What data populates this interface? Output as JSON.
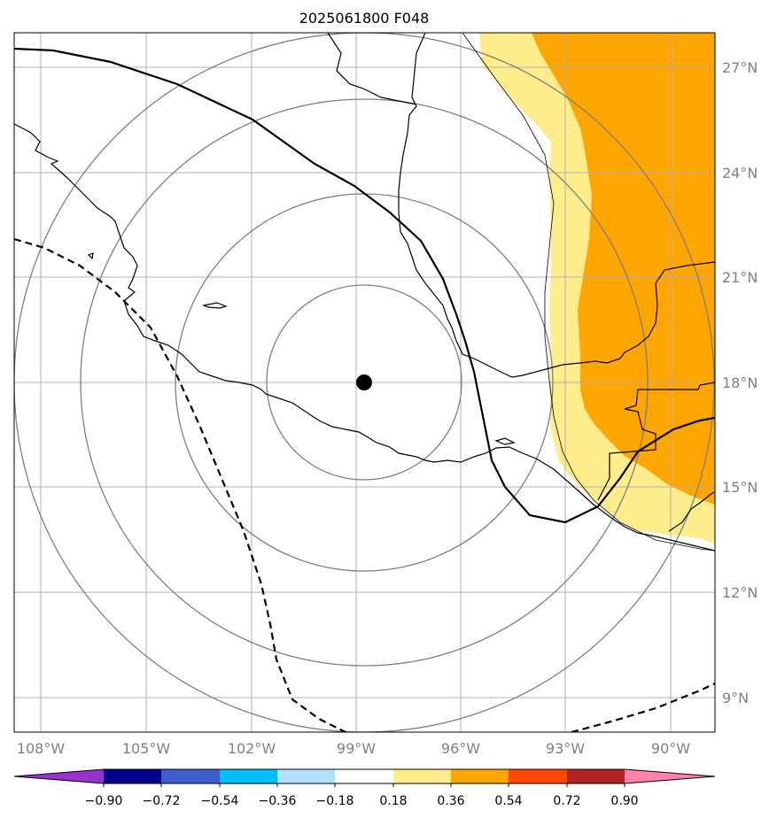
{
  "title": "2025061800 F048",
  "lon_labels": [
    "108°W",
    "105°W",
    "102°W",
    "99°W",
    "96°W",
    "93°W",
    "90°W"
  ],
  "lat_labels": [
    "27°N",
    "24°N",
    "21°N",
    "18°N",
    "15°N",
    "12°N",
    "9°N"
  ],
  "colorbar": {
    "ticks": [
      "−0.90",
      "−0.72",
      "−0.54",
      "−0.36",
      "−0.18",
      "0.18",
      "0.36",
      "0.54",
      "0.72",
      "0.90"
    ],
    "colors": [
      "#9932cc",
      "#00008b",
      "#3a5fcd",
      "#00bfff",
      "#b0e2ff",
      "#ffffff",
      "#ffec8b",
      "#ffa500",
      "#ff4500",
      "#b22222",
      "#ff82ab"
    ]
  },
  "map": {
    "center_marker": {
      "lon": -98.8,
      "lat": 18.0
    },
    "field_colors": {
      "light": "#ffec8b",
      "dark": "#ffa500"
    }
  }
}
